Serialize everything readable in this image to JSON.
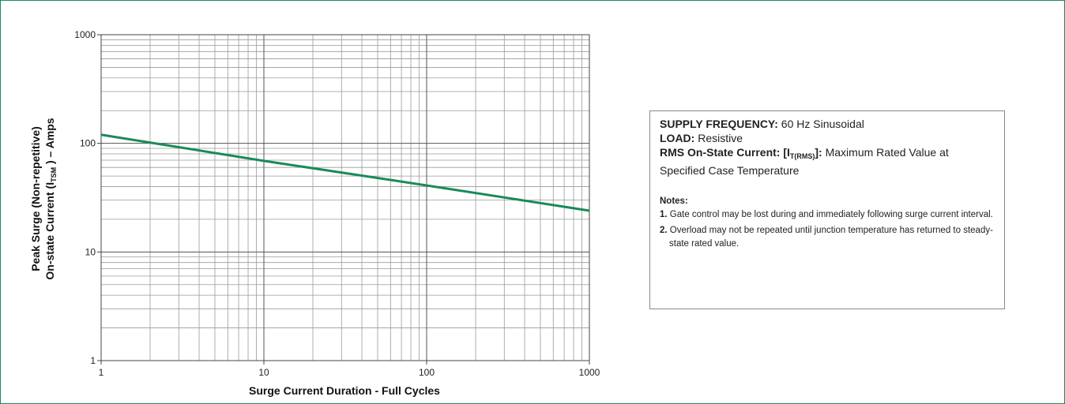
{
  "chart_data": {
    "type": "line",
    "xscale": "log",
    "yscale": "log",
    "xlim": [
      1,
      1000
    ],
    "ylim": [
      1,
      1000
    ],
    "grid": true,
    "xlabel": "Surge Current Duration - Full Cycles",
    "ylabel_line1": "Peak Surge (Non-repetitive)",
    "ylabel_line2_pre": "On-state Current (I",
    "ylabel_line2_sub": "TSM",
    "ylabel_line2_post": " ) – Amps",
    "x_ticks": [
      "1",
      "10",
      "100",
      "1000"
    ],
    "y_ticks": [
      "1",
      "10",
      "100",
      "1000"
    ],
    "series": [
      {
        "color": "#1a8a5a",
        "x": [
          1,
          10,
          100,
          1000
        ],
        "y": [
          120,
          69,
          41,
          24
        ]
      }
    ]
  },
  "info": {
    "freq_label": "SUPPLY FREQUENCY:",
    "freq_value": " 60 Hz Sinusoidal",
    "load_label": "LOAD:",
    "load_value": " Resistive",
    "rms_label_pre": "RMS On-State Current: [I",
    "rms_label_sub": "T(RMS)",
    "rms_label_post": "]:",
    "rms_value": " Maximum Rated Value at Specified Case Temperature",
    "notes_title": "Notes:",
    "notes": [
      {
        "num": "1.",
        "text": " Gate control may be lost during and immediately following surge current interval."
      },
      {
        "num": "2.",
        "text": " Overload may not be repeated until junction temperature has returned to steady-state rated value."
      }
    ]
  }
}
